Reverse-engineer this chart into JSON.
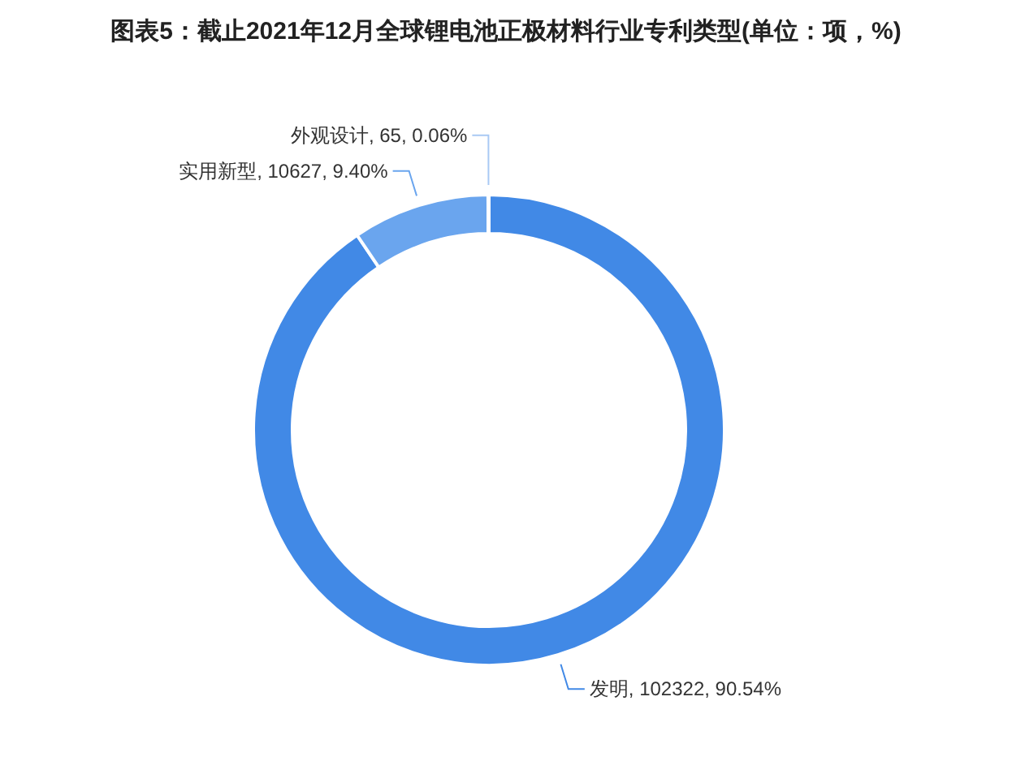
{
  "chart_data": {
    "type": "donut",
    "title": "图表5：截止2021年12月全球锂电池正极材料行业专利类型(单位：项，%)",
    "categories": [
      "发明",
      "实用新型",
      "外观设计"
    ],
    "values": [
      102322,
      10627,
      65
    ],
    "colors": [
      "#4189e6",
      "#6aa5ee",
      "#a9c9f4"
    ],
    "value_labels": [
      "102322, 90.54%",
      "10627, 9.40%",
      "65, 0.06%"
    ],
    "legend": false
  }
}
